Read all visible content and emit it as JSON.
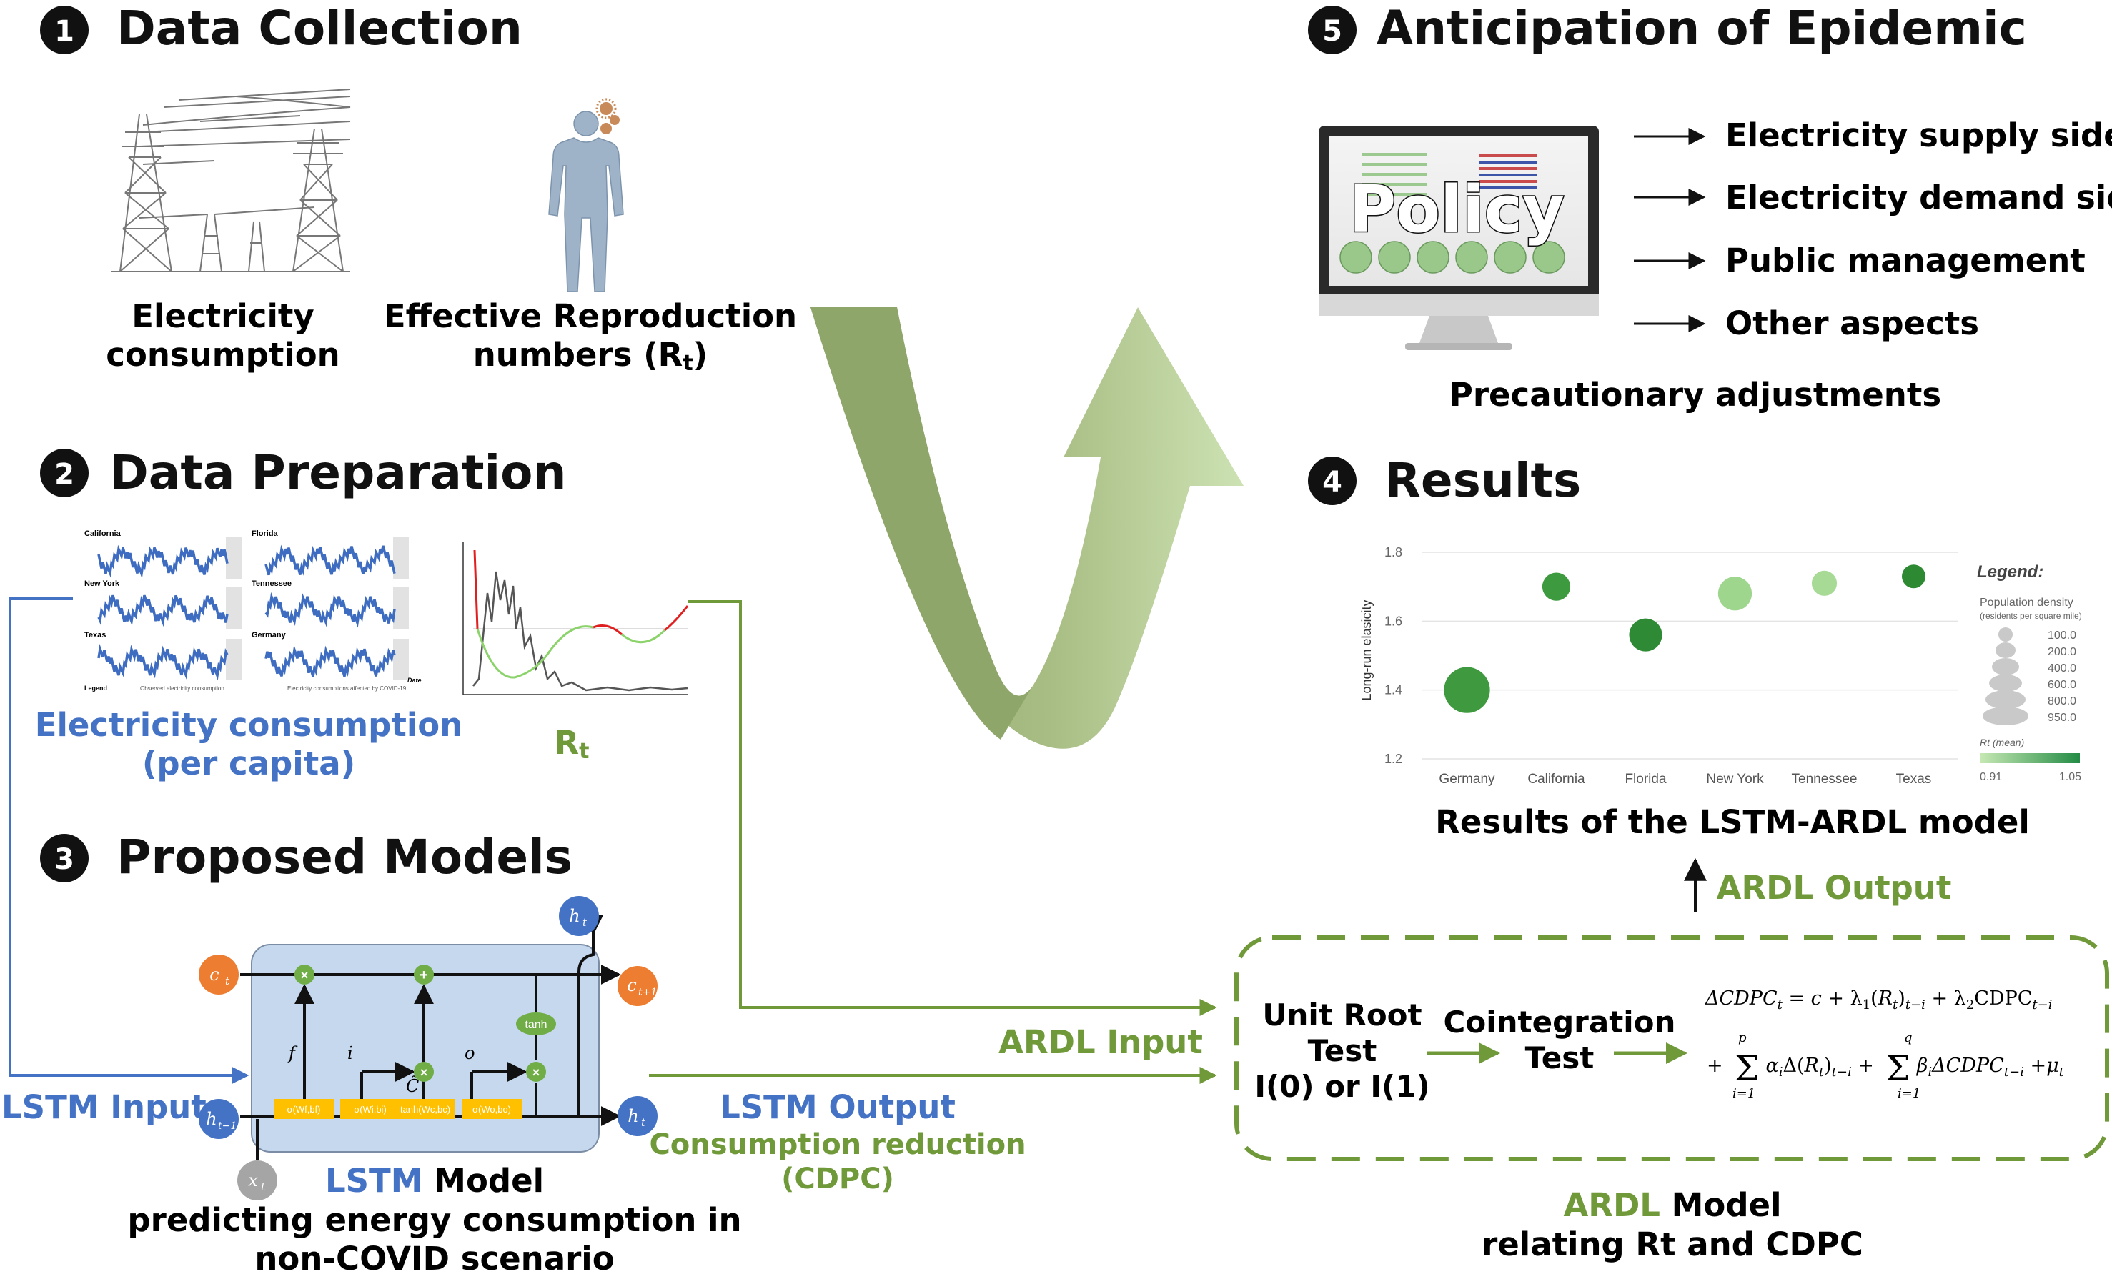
{
  "sections": {
    "s1": {
      "number": "1",
      "title": "Data Collection"
    },
    "s2": {
      "number": "2",
      "title": "Data Preparation"
    },
    "s3": {
      "number": "3",
      "title": "Proposed Models"
    },
    "s4": {
      "number": "4",
      "title": "Results"
    },
    "s5": {
      "number": "5",
      "title": "Anticipation of Epidemic"
    }
  },
  "collection": {
    "electricity_line1": "Electricity",
    "electricity_line2": "consumption",
    "rt_line1": "Effective Reproduction",
    "rt_line2": "numbers (R",
    "rt_sub": "t",
    "rt_close": ")"
  },
  "preparation": {
    "state_labels": [
      "California",
      "Florida",
      "New York",
      "Tennessee",
      "Texas",
      "Germany"
    ],
    "elec_caption_line1": "Electricity consumption",
    "elec_caption_line2": "(per capita)",
    "rt_caption": "R",
    "rt_caption_sub": "t",
    "legend_text": "Legend",
    "observed_text": "Observed electricity consumption",
    "affected_text": "Electricity consumptions affected by COVID-19",
    "date_text": "Date"
  },
  "lstm": {
    "input_label": "LSTM Input",
    "output_label": "LSTM Output",
    "output_sub1": "Consumption reduction",
    "output_sub2": "(CDPC)",
    "model_word_colored": "LSTM",
    "model_word": " Model",
    "model_desc1": "predicting energy consumption in",
    "model_desc2": "non-COVID scenario",
    "nodes": {
      "c_t": "c",
      "c_t1": "c",
      "h_t_top": "h",
      "h_t_right": "h",
      "h_tm1": "h",
      "x_t": "x"
    },
    "gates": [
      "σ(Wf,bf)",
      "σ(Wi,bi)",
      "tanh(Wc,bc)",
      "σ(Wo,bo)"
    ],
    "tanh_label": "tanh",
    "gate_symbols": {
      "f": "f",
      "i": "i",
      "c": "C̃",
      "o": "o"
    }
  },
  "ardl": {
    "input_label": "ARDL Input",
    "output_label": "ARDL Output",
    "unit_root_1": "Unit Root",
    "unit_root_2": "Test",
    "unit_root_3": "I(0) or I(1)",
    "coint_1": "Cointegration",
    "coint_2": "Test",
    "eq_line1": "ΔCDPC",
    "eq_line1b": " = c + λ₁(R",
    "eq_line1c": ")",
    "eq_line1d": " + λ₂CDPC",
    "eq_line2": "+ Σ αᵢΔ(Rₜ)ₜ₋ᵢ + Σ βᵢΔCDPCₜ₋ᵢ + μₜ",
    "model_word_colored": "ARDL",
    "model_word": " Model",
    "model_desc": "relating Rt and CDPC"
  },
  "results": {
    "caption": "Results of the LSTM-ARDL model",
    "legend_title": "Legend:",
    "legend_pop": "Population density",
    "legend_pop_sub": "(residents per square mile)",
    "legend_sizes": [
      "100.0",
      "200.0",
      "400.0",
      "600.0",
      "800.0",
      "950.0"
    ],
    "legend_rt": "Rt (mean)",
    "legend_rt_min": "0.91",
    "legend_rt_max": "1.05"
  },
  "chart_data": {
    "type": "scatter",
    "title": "",
    "xlabel": "",
    "ylabel": "Long-run elasicity",
    "categories": [
      "Germany",
      "California",
      "Florida",
      "New York",
      "Tennessee",
      "Texas"
    ],
    "yticks": [
      "1.2",
      "1.4",
      "1.6",
      "1.8"
    ],
    "ylim": [
      1.2,
      1.8
    ],
    "grid": true,
    "legend_placement": "right",
    "points": [
      {
        "x": "Germany",
        "y": 1.4,
        "size": 950,
        "color": "#3f9a3f"
      },
      {
        "x": "California",
        "y": 1.7,
        "size": 200,
        "color": "#3e9a3e"
      },
      {
        "x": "Florida",
        "y": 1.56,
        "size": 350,
        "color": "#2f8a35"
      },
      {
        "x": "New York",
        "y": 1.68,
        "size": 380,
        "color": "#9ed68e"
      },
      {
        "x": "Tennessee",
        "y": 1.71,
        "size": 130,
        "color": "#a6da95"
      },
      {
        "x": "Texas",
        "y": 1.73,
        "size": 100,
        "color": "#2d8a33"
      }
    ]
  },
  "anticipation": {
    "policy_word": "Policy",
    "items": [
      "Electricity supply side",
      "Electricity demand side",
      "Public management",
      "Other aspects"
    ],
    "caption": "Precautionary adjustments"
  },
  "colors": {
    "blue": "#4472c4",
    "green": "#70993a",
    "node_orange": "#ed7d31",
    "node_blue": "#4472c4",
    "node_gray": "#a5a5a5",
    "gate_yellow": "#ffc000",
    "op_green": "#70ad47",
    "arrow_dark": "#8fa66a",
    "arrow_light": "#c5dca7"
  }
}
